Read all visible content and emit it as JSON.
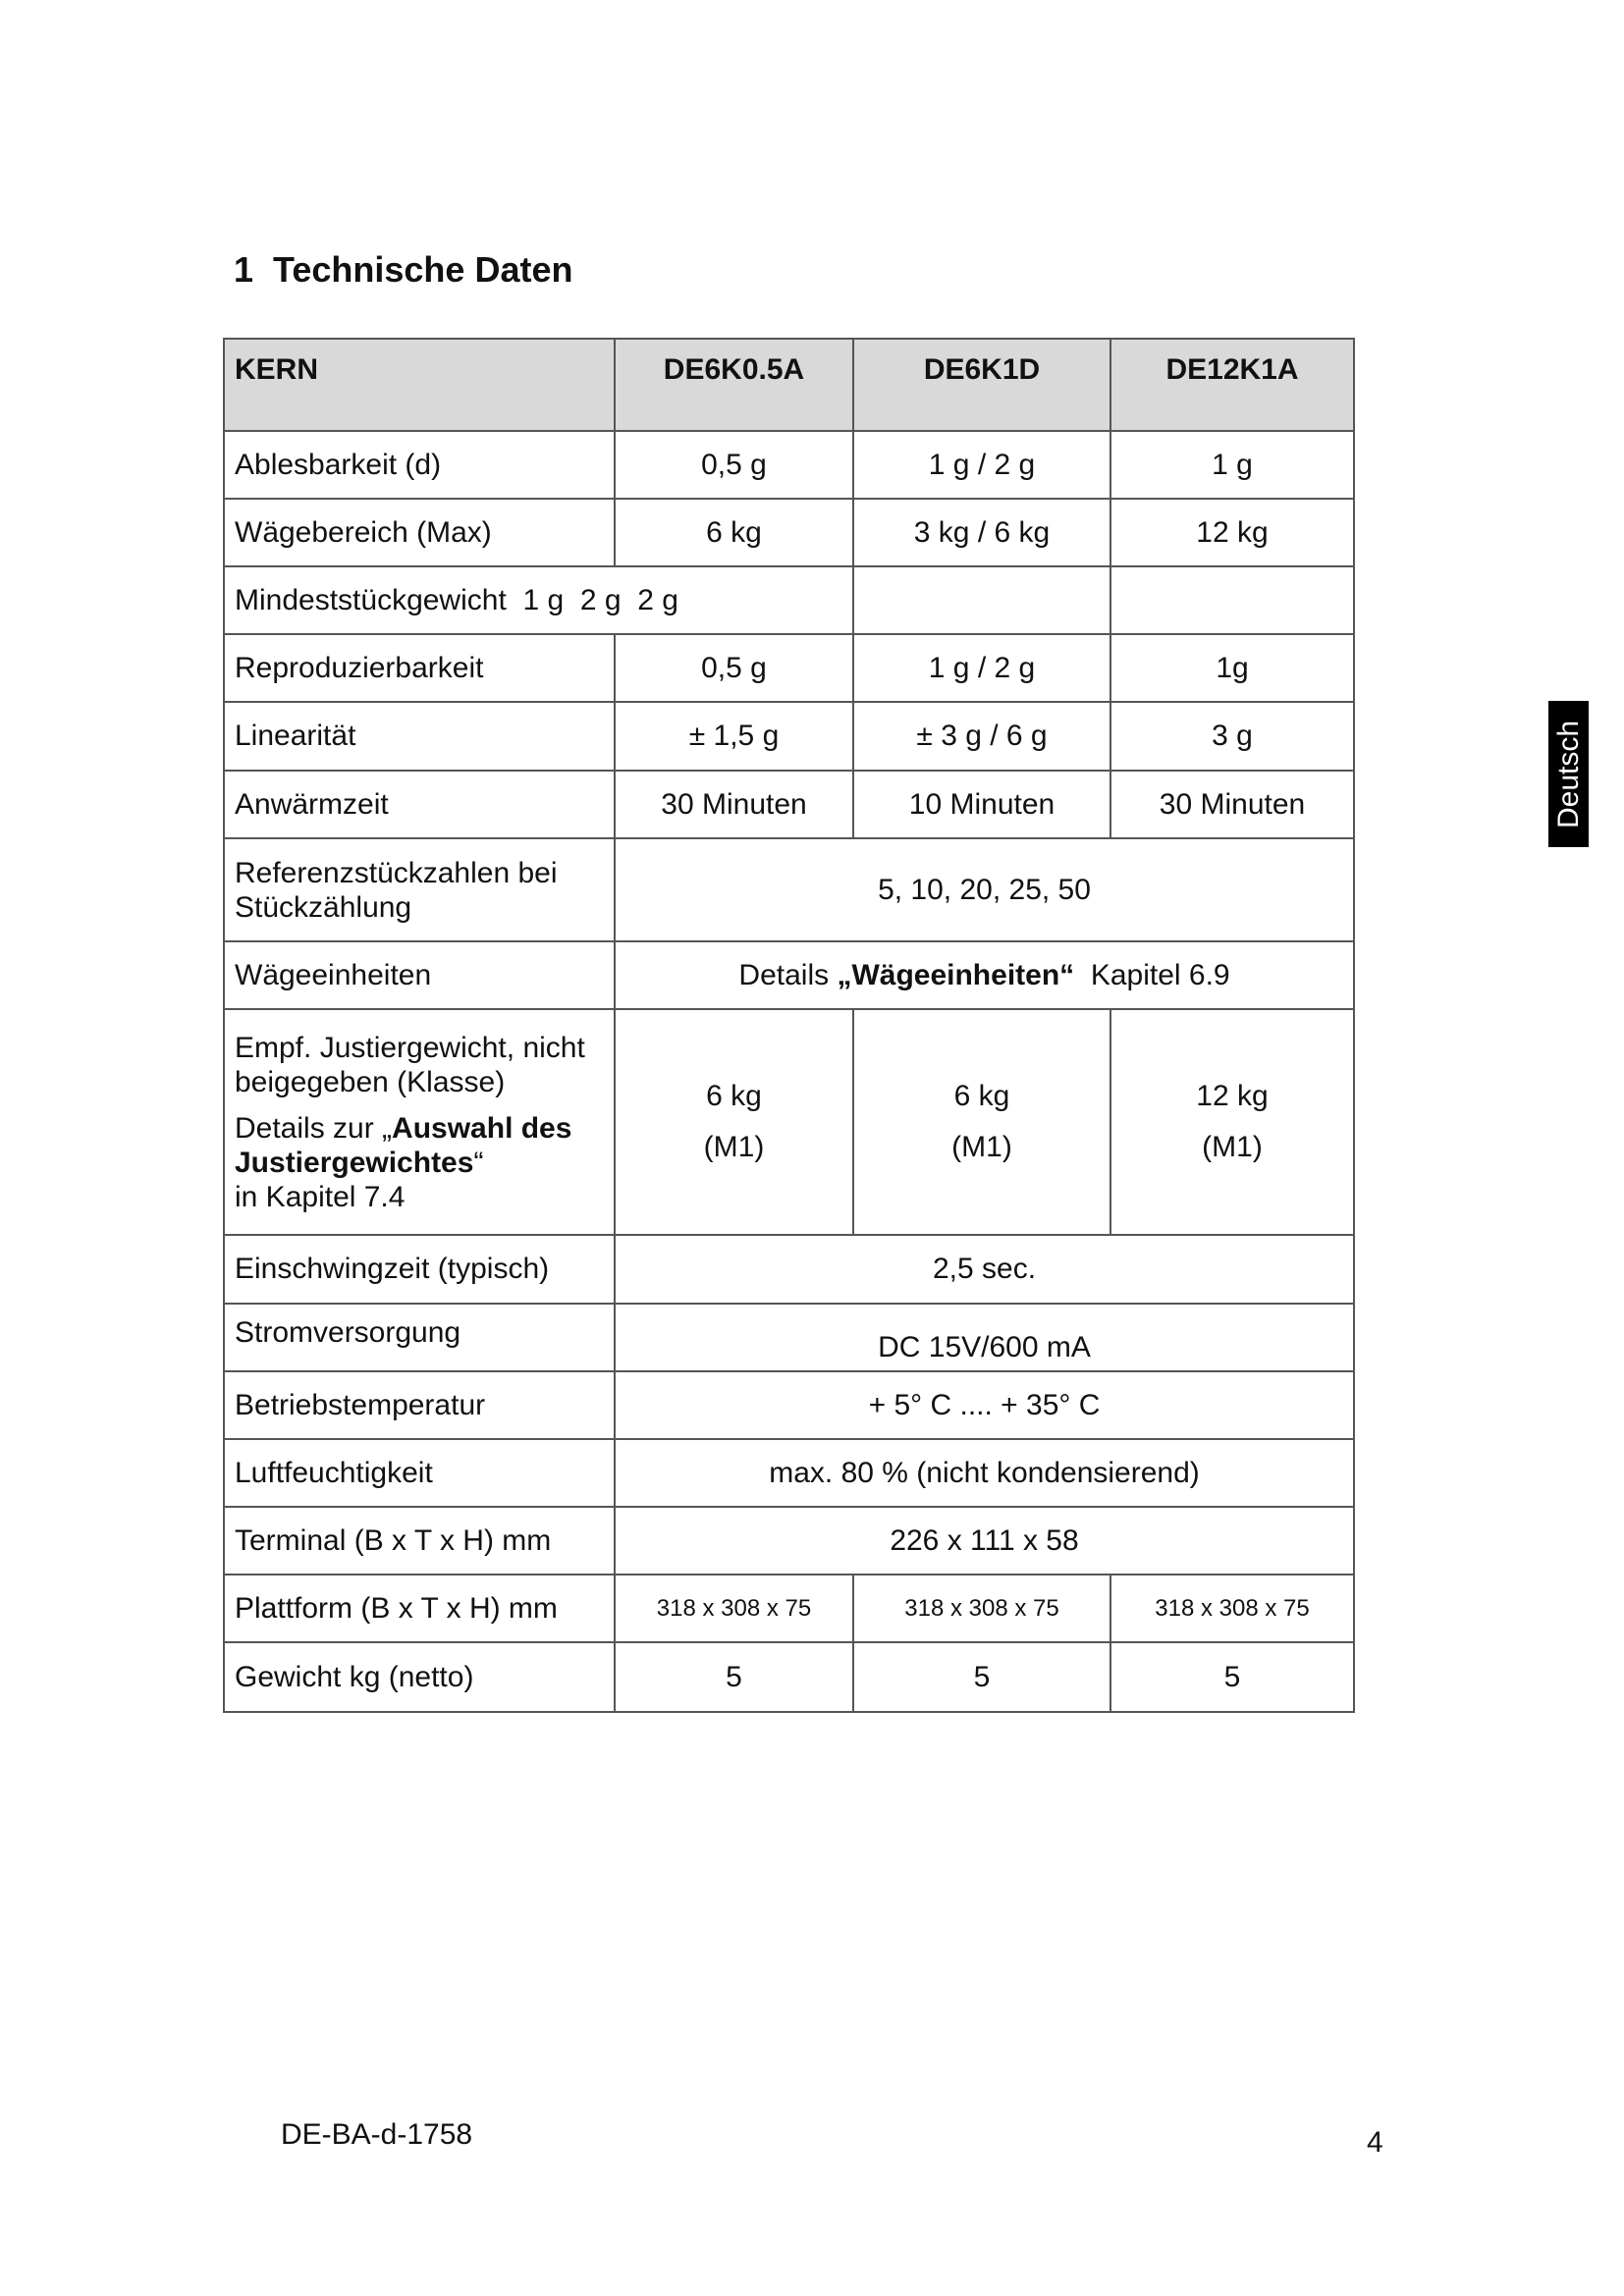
{
  "section": {
    "number": "1",
    "title": "Technische Daten"
  },
  "side_tab": "Deutsch",
  "table": {
    "header": [
      "KERN",
      "DE6K0.5A",
      "DE6K1D",
      "DE12K1A"
    ],
    "rows": {
      "ablesbarkeit": {
        "label": "Ablesbarkeit (d)",
        "values": [
          "0,5 g",
          "1 g / 2 g",
          "1 g"
        ]
      },
      "waegebereich": {
        "label": "Wägebereich (Max)",
        "values": [
          "6 kg",
          "3 kg / 6 kg",
          "12 kg"
        ]
      },
      "mindest": {
        "label": "Mindeststückgewicht  1 g  2 g  2 g"
      },
      "reproduzierbarkeit": {
        "label": "Reproduzierbarkeit",
        "values": [
          "0,5 g",
          "1 g / 2 g",
          "1g"
        ]
      },
      "linearitaet": {
        "label": "Linearität",
        "values": [
          "± 1,5 g",
          "± 3 g / 6 g",
          "3 g"
        ]
      },
      "anwaermzeit": {
        "label": "Anwärmzeit",
        "values": [
          "30 Minuten",
          "10 Minuten",
          "30 Minuten"
        ]
      },
      "referenz": {
        "label": "Referenzstückzahlen bei Stückzählung",
        "value": "5, 10, 20, 25, 50"
      },
      "waegeeinheiten": {
        "label": "Wägeeinheiten",
        "value_pre": "Details ",
        "value_bold": "„Wägeeinheiten“",
        "value_post": "  Kapitel 6.9"
      },
      "justier": {
        "label_line1": "Empf. Justiergewicht, nicht beigegeben (Klasse)",
        "label_pre": "Details zur „",
        "label_bold": "Auswahl des Justiergewichtes",
        "label_quote": "“",
        "label_post": "in Kapitel 7.4",
        "values": [
          "6 kg",
          "6 kg",
          "12 kg"
        ],
        "classes": [
          "(M1)",
          "(M1)",
          "(M1)"
        ]
      },
      "einschwingzeit": {
        "label": "Einschwingzeit (typisch)",
        "value": "2,5 sec."
      },
      "strom": {
        "label": "Stromversorgung",
        "value": "DC 15V/600 mA"
      },
      "temperatur": {
        "label": "Betriebstemperatur",
        "value": "+ 5° C .... + 35° C"
      },
      "luftfeuchte": {
        "label": "Luftfeuchtigkeit",
        "value": "max. 80 % (nicht kondensierend)"
      },
      "terminal": {
        "label": "Terminal (B x T x H) mm",
        "value": "226 x 111 x 58"
      },
      "plattform": {
        "label": "Plattform (B x T x H) mm",
        "values": [
          "318 x 308 x 75",
          "318 x 308 x 75",
          "318 x 308 x 75"
        ]
      },
      "gewicht": {
        "label": "Gewicht kg (netto)",
        "values": [
          "5",
          "5",
          "5"
        ]
      }
    }
  },
  "footer": {
    "code": "DE-BA-d-1758",
    "page": "4"
  }
}
